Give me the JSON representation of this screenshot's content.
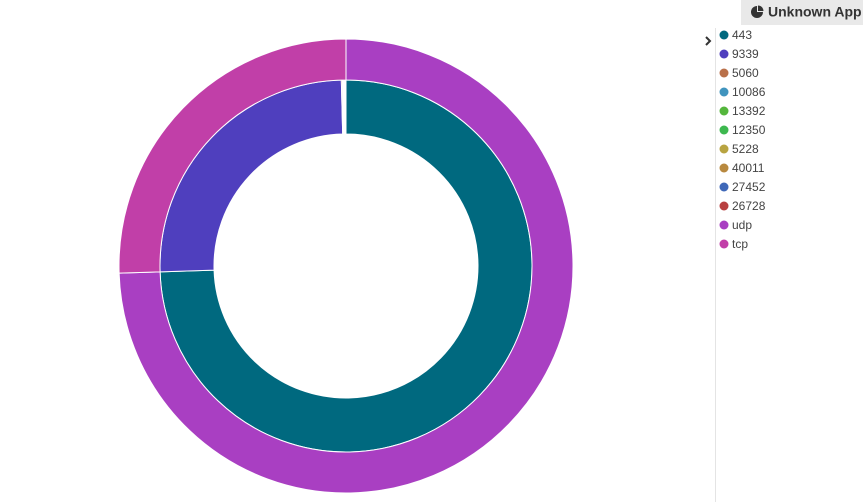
{
  "chart_data": {
    "type": "donut",
    "title": "Unknown App",
    "rings": [
      {
        "categories": [
          "443",
          "9339",
          "5060",
          "10086",
          "13392",
          "12350",
          "5228",
          "40011",
          "27452",
          "26728"
        ],
        "values": [
          74.5,
          25.1,
          0.1,
          0.05,
          0.05,
          0.05,
          0.05,
          0.04,
          0.03,
          0.03
        ],
        "colors": [
          "#00697f",
          "#4f3fbe",
          "#b9704a",
          "#4094be",
          "#54b63c",
          "#3db84f",
          "#b8a441",
          "#b8893f",
          "#3f68b8",
          "#b84040"
        ]
      },
      {
        "categories": [
          "udp",
          "tcp"
        ],
        "values": [
          74.5,
          25.5
        ],
        "colors": [
          "#a93fc2",
          "#c13fa8"
        ]
      }
    ]
  }
}
